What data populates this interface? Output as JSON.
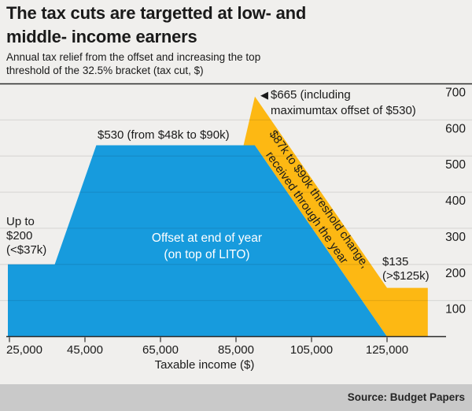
{
  "title": {
    "line1": "The tax cuts are targetted at low- and",
    "line2": "middle- income earners"
  },
  "subtitle": {
    "line1": "Annual tax relief from the offset and increasing the top",
    "line2": "threshold of the 32.5% bracket (tax cut, $)"
  },
  "source": "Source: Budget Papers",
  "colors": {
    "background": "#f0efed",
    "source_bar": "#c9c9c9",
    "text": "#1a1a1a",
    "axis_line": "#2b2b2b",
    "gridline": "rgba(0,0,0,0.085)"
  },
  "chart_data": {
    "type": "area",
    "title": "The tax cuts are targetted at low- and middle- income earners",
    "subtitle": "Annual tax relief from the offset and increasing the top threshold of the 32.5% bracket (tax cut, $)",
    "xlabel": "Taxable income ($)",
    "ylabel": "",
    "xlim": [
      24580,
      135800
    ],
    "ylim": [
      0,
      700
    ],
    "x_ticks": [
      {
        "value": 25000,
        "label": "25,000"
      },
      {
        "value": 45000,
        "label": "45,000"
      },
      {
        "value": 65000,
        "label": "65,000"
      },
      {
        "value": 85000,
        "label": "85,000"
      },
      {
        "value": 105000,
        "label": "105,000"
      },
      {
        "value": 125000,
        "label": "125,000"
      }
    ],
    "y_ticks": [
      100,
      200,
      300,
      400,
      500,
      600,
      700
    ],
    "grid": true,
    "y_axis_side": "right",
    "series": [
      {
        "name": "Offset at end of year (on top of LITO)",
        "type": "area",
        "color": "#179bdd",
        "points": [
          [
            24580,
            200
          ],
          [
            37000,
            200
          ],
          [
            48000,
            530
          ],
          [
            90000,
            530
          ],
          [
            125000,
            0
          ]
        ]
      },
      {
        "name": "$87k to $90k threshold change, received through the year",
        "type": "band",
        "color": "#fdb813",
        "polygon": [
          [
            87000,
            530
          ],
          [
            90000,
            665
          ],
          [
            125000,
            135
          ],
          [
            135800,
            135
          ],
          [
            135800,
            0
          ],
          [
            125000,
            0
          ],
          [
            90000,
            530
          ]
        ]
      }
    ],
    "annotations": {
      "plateau": "$530 (from $48k to $90k)",
      "peak": {
        "arrow": "◀",
        "line1": "$665 (including",
        "line2": "maximumtax offset of $530)"
      },
      "low_income": {
        "line1": "Up to",
        "line2": "$200",
        "line3": "(<$37k)"
      },
      "high_income": {
        "line1": "$135",
        "line2": "(>$125k)"
      },
      "blue_label": {
        "line1": "Offset at end of year",
        "line2": "(on top of LITO)"
      },
      "band_label": {
        "line1": "$87k to $90k threshold change,",
        "line2": "received through the year"
      }
    }
  }
}
